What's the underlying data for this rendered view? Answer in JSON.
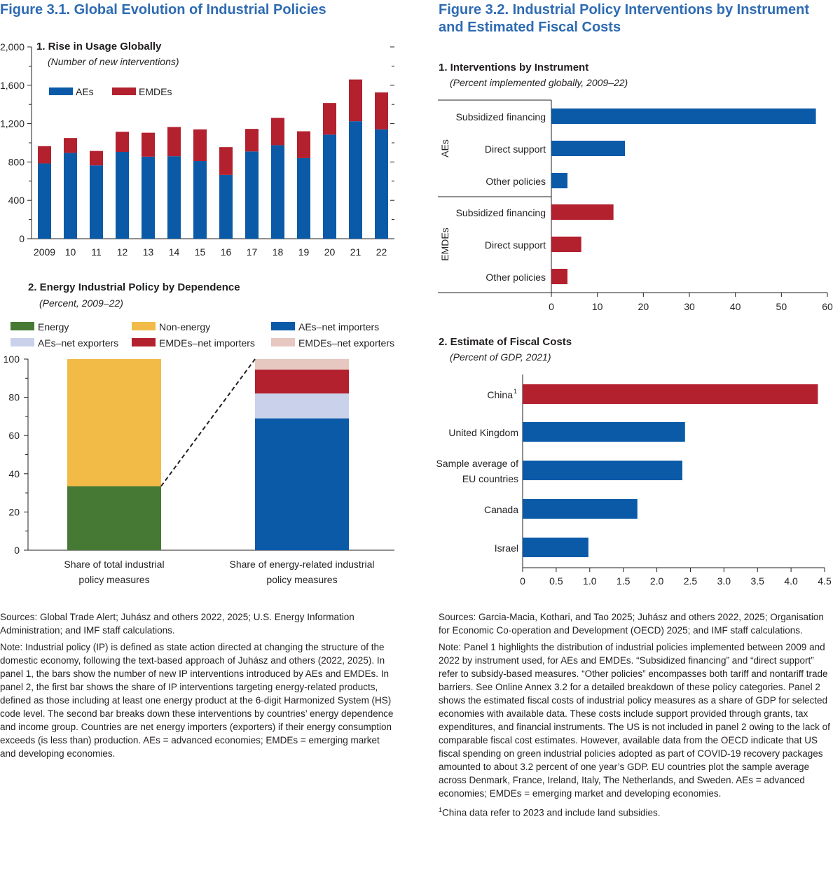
{
  "fig31": {
    "title": "Figure 3.1.  Global Evolution of Industrial Policies",
    "notes": {
      "sources": "Sources: Global Trade Alert; Juhász and others 2022, 2025; U.S. Energy Information Administration; and IMF staff calculations.",
      "note": "Note: Industrial policy (IP) is defined as state action directed at changing the structure of the domestic economy, following the text-based approach of Juhász and others (2022, 2025). In panel 1, the bars show the number of new IP interventions introduced by AEs and EMDEs. In panel 2, the first bar shows the share of IP interventions targeting energy-related products, defined as those including at least one energy product at the 6-digit Harmonized System (HS) code level. The second bar breaks down these interventions by countries’ energy dependence and income group. Countries are net energy importers (exporters) if their energy consumption exceeds (is less than) production. AEs = advanced economies; EMDEs = emerging market and developing economies."
    }
  },
  "fig32": {
    "title": "Figure 3.2.  Industrial Policy Interventions by Instrument and Estimated Fiscal Costs",
    "notes": {
      "sources": "Sources: Garcia-Macia, Kothari, and Tao 2025; Juhász and others 2022, 2025; Organisation for Economic Co-operation and Development (OECD) 2025; and IMF staff calculations.",
      "note": "Note: Panel 1 highlights the distribution of industrial policies implemented between 2009 and 2022 by instrument used, for AEs and EMDEs. “Subsidized financing” and “direct support” refer to subsidy-based measures. “Other policies” encompasses both tariff and nontariff trade barriers. See Online Annex 3.2 for a detailed breakdown of these policy categories. Panel 2 shows the estimated fiscal costs of industrial policy measures as a share of GDP for selected economies with available data. These costs include support provided through grants, tax expenditures, and financial instruments. The US is not included in panel 2 owing to the lack of comparable fiscal cost estimates. However, available data from the OECD indicate that US fiscal spending on green industrial policies adopted as part of COVID-19 recovery packages amounted to about 3.2 percent of one year’s GDP. EU countries plot the sample average across Denmark, France, Ireland, Italy, The Netherlands, and Sweden. AEs = advanced economies; EMDEs = emerging market and developing economies.",
      "footnote_mark": "1",
      "footnote": "China data refer to 2023 and include land subsidies."
    }
  },
  "colors": {
    "ae": "#0a5aa8",
    "emde": "#b3202e",
    "energy": "#467a34",
    "nonenergy": "#f2bb47",
    "ae_exp": "#c9d2ea",
    "emde_exp": "#e6c8c0",
    "title": "#2e6bb3"
  },
  "chart_data": [
    {
      "id": "p1",
      "type": "bar",
      "stacked": true,
      "title": "1. Rise in Usage Globally",
      "subtitle": "(Number of new interventions)",
      "categories": [
        "2009",
        "10",
        "11",
        "12",
        "13",
        "14",
        "15",
        "16",
        "17",
        "18",
        "19",
        "20",
        "21",
        "22"
      ],
      "series": [
        {
          "name": "AEs",
          "values": [
            785,
            895,
            765,
            905,
            855,
            860,
            810,
            665,
            910,
            975,
            840,
            1085,
            1225,
            1140
          ]
        },
        {
          "name": "EMDEs",
          "values": [
            180,
            155,
            150,
            210,
            250,
            305,
            330,
            290,
            235,
            285,
            280,
            330,
            435,
            385
          ]
        }
      ],
      "ylim": [
        0,
        2000
      ],
      "yticks": [
        0,
        400,
        800,
        1200,
        1600,
        2000
      ],
      "ytick_labels": [
        "0",
        "400",
        "800",
        "1,200",
        "1,600",
        "2,000"
      ],
      "legend": "top-left"
    },
    {
      "id": "p2",
      "type": "bar",
      "stacked": true,
      "title": "2. Energy Industrial Policy by Dependence",
      "subtitle": "(Percent, 2009–22)",
      "categories": [
        "Share of total industrial policy measures",
        "Share of energy-related industrial policy measures"
      ],
      "category_lines": [
        [
          "Share of total industrial",
          "policy measures"
        ],
        [
          "Share of energy-related industrial",
          "policy measures"
        ]
      ],
      "series": [
        {
          "name": "Energy",
          "values": [
            33.5,
            0
          ]
        },
        {
          "name": "Non-energy",
          "values": [
            66.5,
            0
          ]
        },
        {
          "name": "AEs–net importers",
          "values": [
            0,
            69
          ]
        },
        {
          "name": "AEs–net exporters",
          "values": [
            0,
            13
          ]
        },
        {
          "name": "EMDEs–net importers",
          "values": [
            0,
            12.5
          ]
        },
        {
          "name": "EMDEs–net exporters",
          "values": [
            0,
            5.5
          ]
        }
      ],
      "ylim": [
        0,
        100
      ],
      "yticks": [
        0,
        20,
        40,
        60,
        80,
        100
      ],
      "ytick_labels": [
        "0",
        "20",
        "40",
        "60",
        "80",
        "100"
      ],
      "legend": "top"
    },
    {
      "id": "p3",
      "type": "bar",
      "orientation": "horizontal",
      "title": "1. Interventions by Instrument",
      "subtitle": "(Percent implemented globally, 2009–22)",
      "groups": [
        "AEs",
        "EMDEs"
      ],
      "categories": [
        "Subsidized financing",
        "Direct support",
        "Other policies",
        "Subsidized financing",
        "Direct support",
        "Other policies"
      ],
      "group_of": [
        "AEs",
        "AEs",
        "AEs",
        "EMDEs",
        "EMDEs",
        "EMDEs"
      ],
      "values": [
        57.5,
        16,
        3.5,
        13.5,
        6.5,
        3.5
      ],
      "xlim": [
        0,
        60
      ],
      "xticks": [
        0,
        10,
        20,
        30,
        40,
        50,
        60
      ],
      "xtick_labels": [
        "0",
        "10",
        "20",
        "30",
        "40",
        "50",
        "60"
      ]
    },
    {
      "id": "p4",
      "type": "bar",
      "orientation": "horizontal",
      "title": "2. Estimate of Fiscal Costs",
      "subtitle": "(Percent of GDP, 2021)",
      "categories": [
        "China",
        "United Kingdom",
        "Sample average of EU countries",
        "Canada",
        "Israel"
      ],
      "category_lines": [
        [
          "China"
        ],
        [
          "United Kingdom"
        ],
        [
          "Sample average of",
          "EU countries"
        ],
        [
          "Canada"
        ],
        [
          "Israel"
        ]
      ],
      "footnote_marks": [
        "1",
        "",
        "",
        "",
        ""
      ],
      "values": [
        4.4,
        2.42,
        2.38,
        1.71,
        0.98
      ],
      "xlim": [
        0,
        4.5
      ],
      "xticks": [
        0,
        0.5,
        1,
        1.5,
        2,
        2.5,
        3,
        3.5,
        4,
        4.5
      ],
      "xtick_labels": [
        "0",
        "0.5",
        "1.0",
        "1.5",
        "2.0",
        "2.5",
        "3.0",
        "3.5",
        "4.0",
        "4.5"
      ]
    }
  ]
}
